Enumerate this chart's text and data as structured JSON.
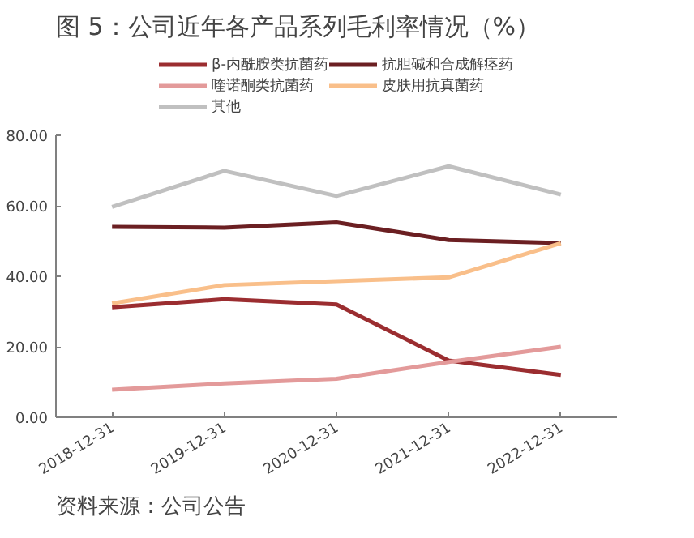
{
  "chart_data": {
    "type": "line",
    "title": "图 5：公司近年各产品系列毛利率情况（%）",
    "categories": [
      "2018-12-31",
      "2019-12-31",
      "2020-12-31",
      "2021-12-31",
      "2022-12-31"
    ],
    "series": [
      {
        "name": "β-内酰胺类抗菌药",
        "color": "#9b2d30",
        "values": [
          31.2,
          33.5,
          32.0,
          16.1,
          12.0
        ]
      },
      {
        "name": "抗胆碱和合成解痉药",
        "color": "#6b1f22",
        "values": [
          54.0,
          53.8,
          55.3,
          50.3,
          49.4
        ]
      },
      {
        "name": "喹诺酮类抗菌药",
        "color": "#e39a9a",
        "values": [
          7.8,
          9.6,
          10.9,
          15.7,
          20.0
        ]
      },
      {
        "name": "皮肤用抗真菌药",
        "color": "#f9bf8a",
        "values": [
          32.3,
          37.5,
          38.6,
          39.7,
          49.4
        ]
      },
      {
        "name": "其他",
        "color": "#c0c0c0",
        "values": [
          59.7,
          69.9,
          62.8,
          71.2,
          63.2
        ]
      }
    ],
    "ylim": [
      0,
      80
    ],
    "yticks": [
      {
        "value": 0,
        "label": "0.00"
      },
      {
        "value": 20,
        "label": "20.00"
      },
      {
        "value": 40,
        "label": "40.00"
      },
      {
        "value": 60,
        "label": "60.00"
      },
      {
        "value": 80,
        "label": "80.00"
      }
    ],
    "grid": false,
    "legend": "top",
    "marker": "none",
    "line_style": "solid",
    "annotations": [
      "资料来源：公司公告"
    ]
  }
}
